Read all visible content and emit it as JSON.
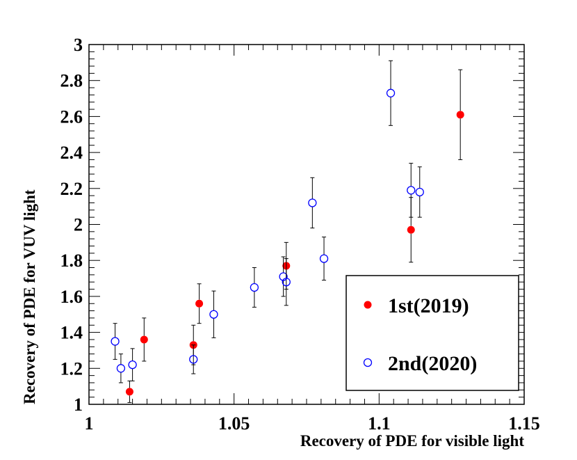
{
  "chart_data": {
    "type": "scatter",
    "title": "",
    "xlabel": "Recovery of PDE for visible light",
    "ylabel": "Recovery of PDE for VUV light",
    "xlim": [
      1.0,
      1.15
    ],
    "ylim": [
      1.0,
      3.0
    ],
    "x_ticks": [
      1.0,
      1.05,
      1.1,
      1.15
    ],
    "x_tick_labels": [
      "1",
      "1.05",
      "1.1",
      "1.15"
    ],
    "y_ticks": [
      1.0,
      1.2,
      1.4,
      1.6,
      1.8,
      2.0,
      2.2,
      2.4,
      2.6,
      2.8,
      3.0
    ],
    "y_tick_labels": [
      "1",
      "1.2",
      "1.4",
      "1.6",
      "1.8",
      "2",
      "2.2",
      "2.4",
      "2.6",
      "2.8",
      "3"
    ],
    "grid": false,
    "legend_position": "bottom-right",
    "series": [
      {
        "name": "1st(2019)",
        "marker": "filled-circle",
        "color": "#ff0000",
        "points": [
          {
            "x": 1.014,
            "y": 1.07,
            "err": 0.06
          },
          {
            "x": 1.019,
            "y": 1.36,
            "err": 0.12
          },
          {
            "x": 1.036,
            "y": 1.33,
            "err": 0.11
          },
          {
            "x": 1.038,
            "y": 1.56,
            "err": 0.11
          },
          {
            "x": 1.068,
            "y": 1.77,
            "err": 0.13
          },
          {
            "x": 1.111,
            "y": 1.97,
            "err": 0.18
          },
          {
            "x": 1.128,
            "y": 2.61,
            "err": 0.25
          }
        ]
      },
      {
        "name": "2nd(2020)",
        "marker": "open-circle",
        "color": "#0000ff",
        "points": [
          {
            "x": 1.009,
            "y": 1.35,
            "err": 0.1
          },
          {
            "x": 1.011,
            "y": 1.2,
            "err": 0.08
          },
          {
            "x": 1.015,
            "y": 1.22,
            "err": 0.09
          },
          {
            "x": 1.036,
            "y": 1.25,
            "err": 0.08
          },
          {
            "x": 1.043,
            "y": 1.5,
            "err": 0.13
          },
          {
            "x": 1.057,
            "y": 1.65,
            "err": 0.11
          },
          {
            "x": 1.067,
            "y": 1.71,
            "err": 0.11
          },
          {
            "x": 1.068,
            "y": 1.68,
            "err": 0.13
          },
          {
            "x": 1.077,
            "y": 2.12,
            "err": 0.14
          },
          {
            "x": 1.081,
            "y": 1.81,
            "err": 0.12
          },
          {
            "x": 1.104,
            "y": 2.73,
            "err": 0.18
          },
          {
            "x": 1.111,
            "y": 2.19,
            "err": 0.15
          },
          {
            "x": 1.114,
            "y": 2.18,
            "err": 0.14
          }
        ]
      }
    ]
  }
}
